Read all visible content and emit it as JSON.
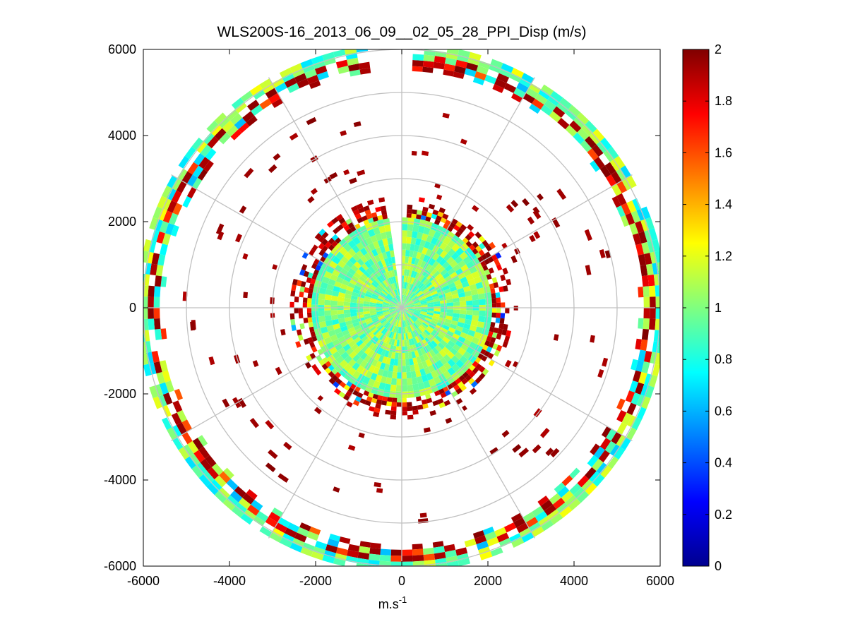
{
  "chart_data": {
    "type": "heatmap",
    "subtype": "polar-ppi",
    "title": "WLS200S-16_2013_06_09__02_05_28_PPI_Disp (m/s)",
    "xlabel": "m.s",
    "xlabel_superscript": "-1",
    "ylabel": "",
    "xlim": [
      -6000,
      6000
    ],
    "ylim": [
      -6000,
      6000
    ],
    "xticks": [
      -6000,
      -4000,
      -2000,
      0,
      2000,
      4000,
      6000
    ],
    "yticks": [
      6000,
      4000,
      2000,
      0,
      -2000,
      -4000,
      -6000
    ],
    "xtick_labels": [
      "-6000",
      "-4000",
      "-2000",
      "0",
      "2000",
      "4000",
      "6000"
    ],
    "ytick_labels": [
      "6000",
      "4000",
      "2000",
      "0",
      "-2000",
      "-4000",
      "-6000"
    ],
    "polar_grid": {
      "ring_radii": [
        1000,
        2000,
        3000,
        4000,
        5000,
        6000
      ],
      "spoke_angles_deg": [
        0,
        30,
        60,
        90,
        120,
        150,
        180,
        210,
        240,
        270,
        300,
        330
      ]
    },
    "colorbar": {
      "colormap": "jet",
      "min": 0,
      "max": 2,
      "ticks": [
        0,
        0.2,
        0.4,
        0.6,
        0.8,
        1,
        1.2,
        1.4,
        1.6,
        1.8,
        2
      ],
      "tick_labels": [
        "0",
        "0.2",
        "0.4",
        "0.6",
        "0.8",
        "1",
        "1.2",
        "1.4",
        "1.6",
        "1.8",
        "2"
      ]
    },
    "regions": [
      {
        "name": "dense inner disc",
        "r_min": 0,
        "r_max": 2100,
        "typical_value": 0.95,
        "range": [
          0.8,
          1.2
        ]
      },
      {
        "name": "inner edge band",
        "r_min": 2100,
        "r_max": 2600,
        "typical_value": 1.8,
        "range": [
          0.3,
          2
        ]
      },
      {
        "name": "sparse middle returns",
        "r_min": 2600,
        "r_max": 5000,
        "typical_value": 2,
        "range": [
          1.9,
          2
        ]
      },
      {
        "name": "outer ring",
        "r_min": 5500,
        "r_max": 6150,
        "typical_value": 1.0,
        "range": [
          0.6,
          2
        ]
      }
    ],
    "beam_gap_azimuth_deg": [
      -8,
      2
    ]
  }
}
